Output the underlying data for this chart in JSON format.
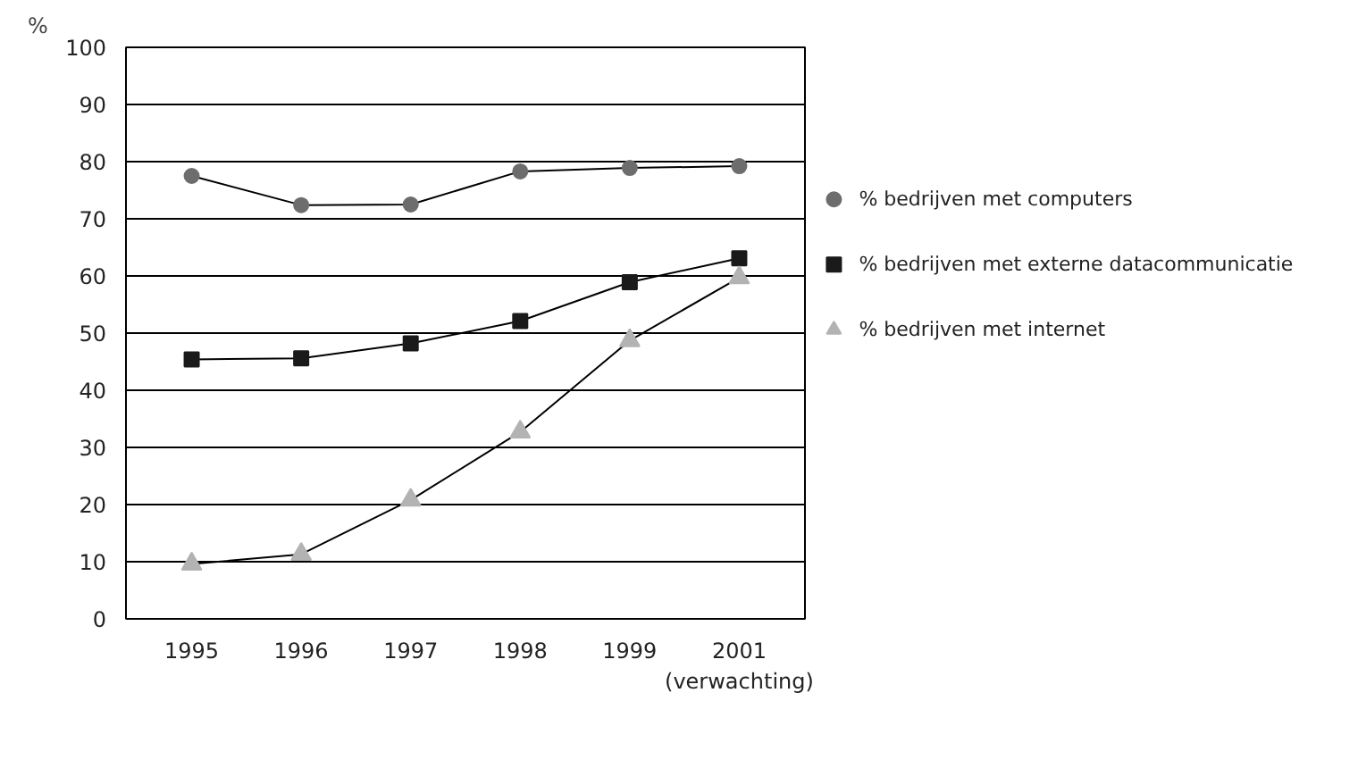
{
  "chart_data": {
    "type": "line",
    "ylabel": "%",
    "categories": [
      "1995",
      "1996",
      "1997",
      "1998",
      "1999",
      "2001\n(verwachting)"
    ],
    "ylim": [
      0,
      100
    ],
    "yticks": [
      0,
      10,
      20,
      30,
      40,
      50,
      60,
      70,
      80,
      90,
      100
    ],
    "grid": "y",
    "legend": "right",
    "series": [
      {
        "name": "% bedrijven met computers",
        "color": "#6d6d6d",
        "marker": "circle",
        "values": [
          77.5,
          72.4,
          72.5,
          78.3,
          78.9,
          79.2
        ]
      },
      {
        "name": "% bedrijven met externe datacommunicatie",
        "color": "#1a1a1a",
        "marker": "square",
        "values": [
          45.4,
          45.6,
          48.2,
          52.1,
          58.9,
          63.1
        ]
      },
      {
        "name": "% bedrijven met internet",
        "color": "#b3b3b3",
        "marker": "triangle",
        "values": [
          9.6,
          11.3,
          20.8,
          32.7,
          48.7,
          59.7
        ]
      }
    ]
  }
}
